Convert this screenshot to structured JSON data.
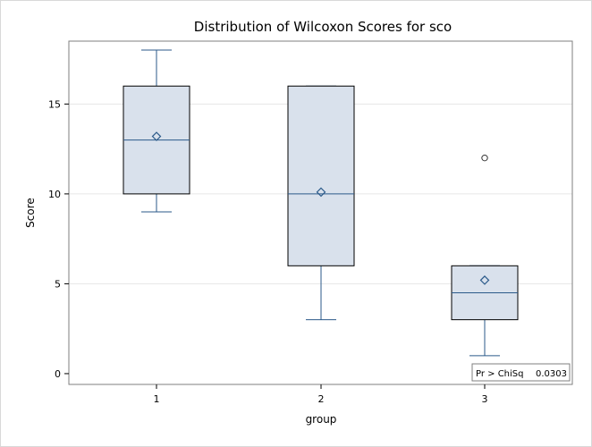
{
  "chart_data": {
    "type": "box",
    "title": "Distribution of Wilcoxon Scores for sco",
    "xlabel": "group",
    "ylabel": "Score",
    "categories": [
      "1",
      "2",
      "3"
    ],
    "yticks": [
      0,
      5,
      10,
      15
    ],
    "ylim": [
      -0.6,
      18.5
    ],
    "grid": "horizontal",
    "boxes": [
      {
        "category": "1",
        "min": 9,
        "q1": 10,
        "median": 13,
        "q3": 16,
        "max": 18,
        "mean": 13.2,
        "outliers": []
      },
      {
        "category": "2",
        "min": 3,
        "q1": 6,
        "median": 10,
        "q3": 16,
        "max": 16,
        "mean": 10.1,
        "outliers": []
      },
      {
        "category": "3",
        "min": 1,
        "q1": 3,
        "median": 4.5,
        "q3": 6,
        "max": 6,
        "mean": 5.2,
        "outliers": [
          12
        ]
      }
    ],
    "inset": {
      "label": "Pr > ChiSq",
      "value": "0.0303"
    },
    "colors": {
      "box_fill": "#d9e1ec",
      "box_stroke": "#2b5a8a",
      "grid": "#e6e6e6",
      "frame": "#7f7f7f"
    }
  }
}
